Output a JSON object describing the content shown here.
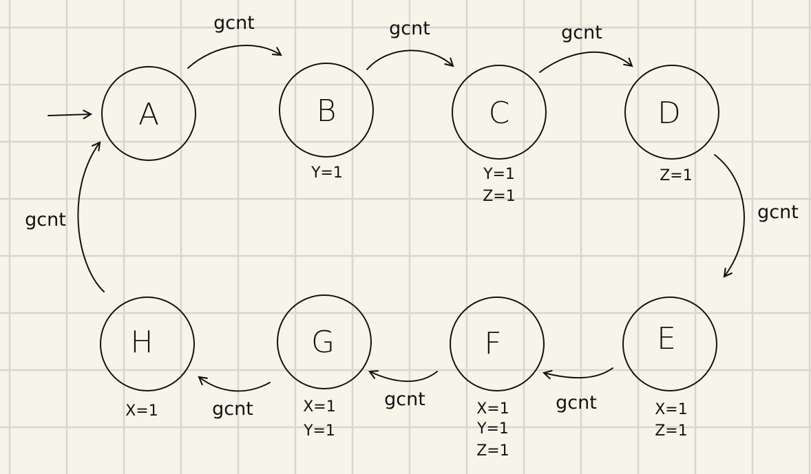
{
  "diagram": {
    "states": [
      {
        "id": "A",
        "label": "A",
        "outputs": []
      },
      {
        "id": "B",
        "label": "B",
        "outputs": [
          "Y=1"
        ]
      },
      {
        "id": "C",
        "label": "C",
        "outputs": [
          "Y=1",
          "Z=1"
        ]
      },
      {
        "id": "D",
        "label": "D",
        "outputs": [
          "Z=1"
        ]
      },
      {
        "id": "E",
        "label": "E",
        "outputs": [
          "X=1",
          "Z=1"
        ]
      },
      {
        "id": "F",
        "label": "F",
        "outputs": [
          "X=1",
          "Y=1",
          "Z=1"
        ]
      },
      {
        "id": "G",
        "label": "G",
        "outputs": [
          "X=1",
          "Y=1"
        ]
      },
      {
        "id": "H",
        "label": "H",
        "outputs": [
          "X=1"
        ]
      }
    ],
    "initial_state": "A",
    "transitions": [
      {
        "from": "A",
        "to": "B",
        "label": "gcnt"
      },
      {
        "from": "B",
        "to": "C",
        "label": "gcnt"
      },
      {
        "from": "C",
        "to": "D",
        "label": "gcnt"
      },
      {
        "from": "D",
        "to": "E",
        "label": "gcnt"
      },
      {
        "from": "E",
        "to": "F",
        "label": "gcnt"
      },
      {
        "from": "F",
        "to": "G",
        "label": "gcnt"
      },
      {
        "from": "G",
        "to": "H",
        "label": "gcnt"
      },
      {
        "from": "H",
        "to": "A",
        "label": "gcnt"
      }
    ]
  }
}
